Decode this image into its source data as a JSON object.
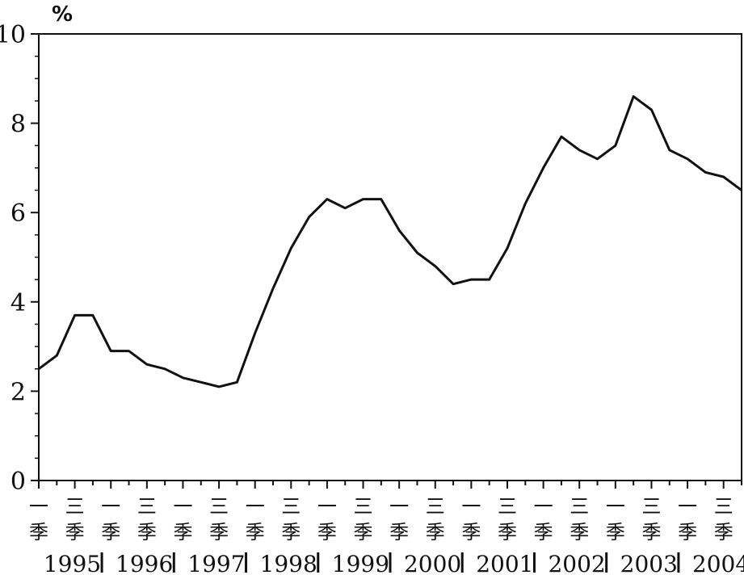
{
  "chart_data": {
    "type": "line",
    "unit_label": "%",
    "ylim": [
      0,
      10
    ],
    "yticks": [
      "0",
      "2",
      "4",
      "6",
      "8",
      "10"
    ],
    "grid": false,
    "legend": "none",
    "x": [
      "1995Q1",
      "1995Q2",
      "1995Q3",
      "1995Q4",
      "1996Q1",
      "1996Q2",
      "1996Q3",
      "1996Q4",
      "1997Q1",
      "1997Q2",
      "1997Q3",
      "1997Q4",
      "1998Q1",
      "1998Q2",
      "1998Q3",
      "1998Q4",
      "1999Q1",
      "1999Q2",
      "1999Q3",
      "1999Q4",
      "2000Q1",
      "2000Q2",
      "2000Q3",
      "2000Q4",
      "2001Q1",
      "2001Q2",
      "2001Q3",
      "2001Q4",
      "2002Q1",
      "2002Q2",
      "2002Q3",
      "2002Q4",
      "2003Q1",
      "2003Q2",
      "2003Q3",
      "2003Q4",
      "2004Q1",
      "2004Q2",
      "2004Q3",
      "2004Q4"
    ],
    "series": [
      {
        "values": [
          2.5,
          2.8,
          3.7,
          3.7,
          2.9,
          2.9,
          2.6,
          2.5,
          2.3,
          2.2,
          2.1,
          2.2,
          3.3,
          4.3,
          5.2,
          5.9,
          6.3,
          6.1,
          6.3,
          6.3,
          5.6,
          5.1,
          4.8,
          4.4,
          4.5,
          4.5,
          5.2,
          6.2,
          7.0,
          7.7,
          7.4,
          7.2,
          7.5,
          8.6,
          8.3,
          7.4,
          7.2,
          6.9,
          6.8,
          6.5
        ]
      }
    ],
    "quarter_labels": [
      {
        "label": "一",
        "index": 0
      },
      {
        "label": "三",
        "index": 2
      },
      {
        "label": "一",
        "index": 4
      },
      {
        "label": "三",
        "index": 6
      },
      {
        "label": "一",
        "index": 8
      },
      {
        "label": "三",
        "index": 10
      },
      {
        "label": "一",
        "index": 12
      },
      {
        "label": "三",
        "index": 14
      },
      {
        "label": "一",
        "index": 16
      },
      {
        "label": "三",
        "index": 18
      },
      {
        "label": "一",
        "index": 20
      },
      {
        "label": "三",
        "index": 22
      },
      {
        "label": "一",
        "index": 24
      },
      {
        "label": "三",
        "index": 26
      },
      {
        "label": "一",
        "index": 28
      },
      {
        "label": "三",
        "index": 30
      },
      {
        "label": "一",
        "index": 32
      },
      {
        "label": "三",
        "index": 34
      },
      {
        "label": "一",
        "index": 36
      },
      {
        "label": "三",
        "index": 38
      }
    ],
    "season_char": "季",
    "years": [
      "1995",
      "1996",
      "1997",
      "1998",
      "1999",
      "2000",
      "2001",
      "2002",
      "2003",
      "2004"
    ]
  }
}
